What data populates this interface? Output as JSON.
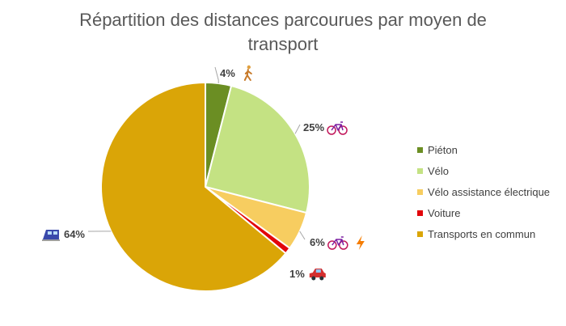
{
  "chart_data": {
    "type": "pie",
    "title": "Répartition des distances parcourues par moyen de transport",
    "start_angle_deg": 0,
    "direction": "clockwise",
    "categories": [
      "Piéton",
      "Vélo",
      "Vélo assistance électrique",
      "Voiture",
      "Transports en commun"
    ],
    "values": [
      4,
      25,
      6,
      1,
      64
    ],
    "data_labels": [
      "4%",
      "25%",
      "6%",
      "1%",
      "64%"
    ],
    "colors": [
      "#6B8E23",
      "#C4E283",
      "#F7CD60",
      "#E2060B",
      "#DAA507"
    ],
    "label_icons": [
      [
        "walking-person-icon"
      ],
      [
        "bicycle-icon"
      ],
      [
        "bicycle-icon",
        "lightning-icon"
      ],
      [
        "car-icon"
      ],
      [
        "train-icon"
      ]
    ],
    "legend": {
      "position": "right",
      "entries": [
        "Piéton",
        "Vélo",
        "Vélo assistance électrique",
        "Voiture",
        "Transports en commun"
      ]
    }
  }
}
